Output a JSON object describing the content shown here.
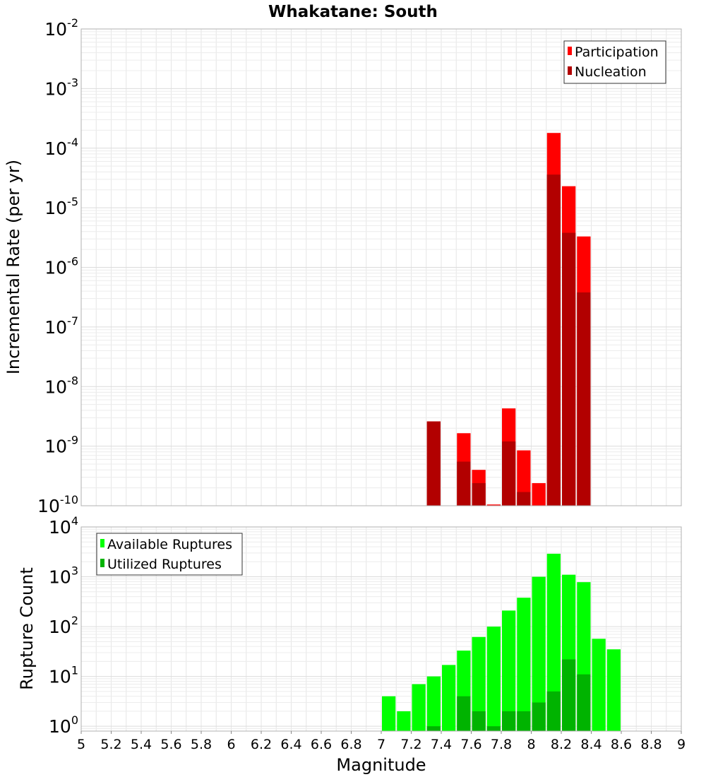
{
  "chart_data": [
    {
      "type": "bar",
      "title": "Whakatane: South",
      "xlabel": "",
      "ylabel": "Incremental Rate (per yr)",
      "xlim": [
        5,
        9
      ],
      "ylim": [
        1e-10,
        0.01
      ],
      "yscale": "log",
      "y_tick_exponents": [
        "-10",
        "-9",
        "-8",
        "-7",
        "-6",
        "-5",
        "-4",
        "-3",
        "-2"
      ],
      "legend_position": "top-right",
      "grid": true,
      "series": [
        {
          "name": "Participation",
          "color": "#ff0000",
          "x": [
            7.3,
            7.5,
            7.6,
            7.7,
            7.8,
            7.9,
            8.0,
            8.1,
            8.2,
            8.3
          ],
          "values": [
            2.6e-09,
            1.65e-09,
            4e-10,
            1.05e-10,
            4.3e-09,
            8.5e-10,
            2.4e-10,
            0.00018,
            2.3e-05,
            3.3e-06
          ]
        },
        {
          "name": "Nucleation",
          "color": "#b20000",
          "x": [
            7.3,
            7.5,
            7.6,
            7.8,
            7.9,
            8.1,
            8.2,
            8.3
          ],
          "values": [
            2.6e-09,
            5.5e-10,
            2.4e-10,
            1.2e-09,
            1.7e-10,
            3.6e-05,
            3.8e-06,
            3.8e-07
          ]
        }
      ]
    },
    {
      "type": "bar",
      "title": "",
      "xlabel": "Magnitude",
      "ylabel": "Rupture Count",
      "xlim": [
        5,
        9
      ],
      "ylim": [
        0.8,
        10000
      ],
      "yscale": "log",
      "y_tick_exponents": [
        "0",
        "1",
        "2",
        "3",
        "4"
      ],
      "x_tick_labels": [
        "5",
        "5.2",
        "5.4",
        "5.6",
        "5.8",
        "6",
        "6.2",
        "6.4",
        "6.6",
        "6.8",
        "7",
        "7.2",
        "7.4",
        "7.6",
        "7.8",
        "8",
        "8.2",
        "8.4",
        "8.6",
        "8.8",
        "9"
      ],
      "legend_position": "top-left",
      "grid": true,
      "series": [
        {
          "name": "Available Ruptures",
          "color": "#00ff00",
          "x": [
            7.0,
            7.1,
            7.2,
            7.3,
            7.4,
            7.5,
            7.6,
            7.7,
            7.8,
            7.9,
            8.0,
            8.1,
            8.2,
            8.3,
            8.4,
            8.5
          ],
          "values": [
            4,
            2,
            7,
            10,
            17,
            33,
            62,
            100,
            210,
            380,
            1000,
            2900,
            1100,
            780,
            57,
            35
          ]
        },
        {
          "name": "Utilized Ruptures",
          "color": "#00b300",
          "x": [
            7.3,
            7.5,
            7.6,
            7.7,
            7.8,
            7.9,
            8.0,
            8.1,
            8.2,
            8.3
          ],
          "values": [
            1,
            4,
            2,
            1,
            2,
            2,
            3,
            5,
            22,
            11
          ]
        }
      ]
    }
  ]
}
